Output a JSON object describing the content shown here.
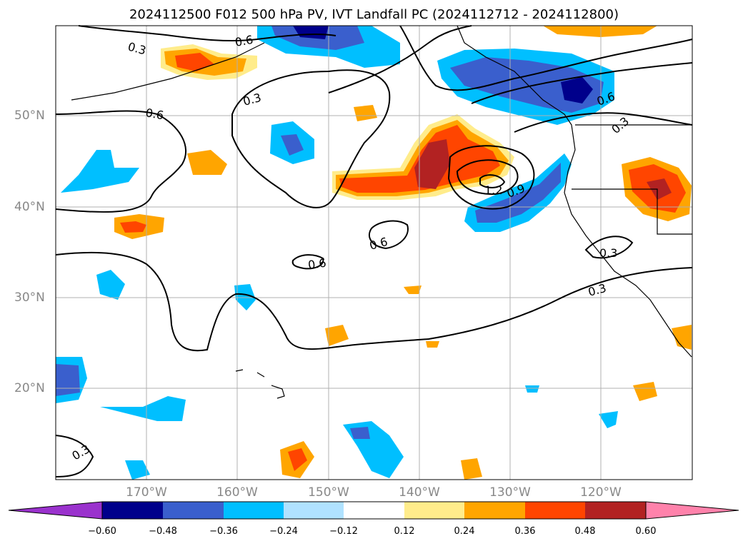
{
  "title": "2024112500 F012 500 hPa PV, IVT Landfall PC (2024112712 - 2024112800)",
  "lat_labels": [
    "50°N",
    "40°N",
    "30°N",
    "20°N"
  ],
  "lon_labels": [
    "170°W",
    "160°W",
    "150°W",
    "140°W",
    "130°W",
    "120°W"
  ],
  "contour_labels": [
    "0.3",
    "0.6",
    "0.3",
    "0.6",
    "0.6",
    "0.6",
    "1.2",
    "0.9",
    "0.6",
    "0.3",
    "0.3",
    "0.3",
    "0.3"
  ],
  "colorbar": {
    "ticks": [
      "−0.60",
      "−0.48",
      "−0.36",
      "−0.24",
      "−0.12",
      "0.12",
      "0.24",
      "0.36",
      "0.48",
      "0.60"
    ],
    "colors": [
      "#9a32cd",
      "#00008b",
      "#3a5fcd",
      "#00bfff",
      "#b0e2ff",
      "#ffffff",
      "#ffec8b",
      "#ffa500",
      "#ff4500",
      "#b22222",
      "#ff82ab"
    ]
  }
}
